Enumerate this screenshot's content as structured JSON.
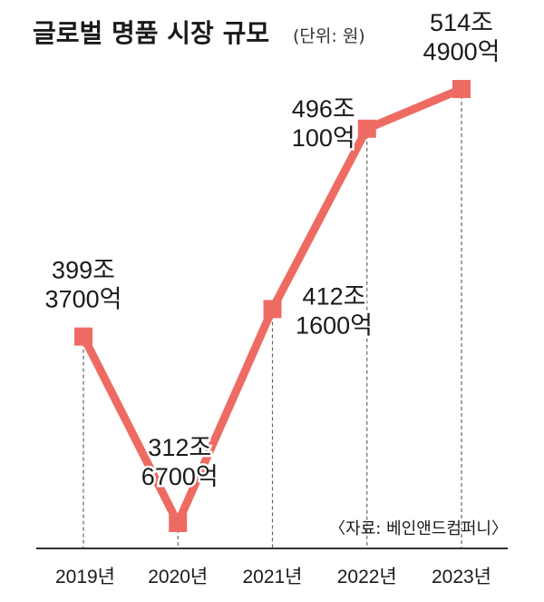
{
  "chart_data": {
    "type": "line",
    "title": "글로벌 명품 시장 규모",
    "unit_note": "(단위: 원)",
    "categories": [
      "2019년",
      "2020년",
      "2021년",
      "2022년",
      "2023년"
    ],
    "series": [
      {
        "values": [
          399.37,
          312.67,
          412.16,
          496.01,
          514.49
        ],
        "value_labels": [
          [
            "399조",
            "3700억"
          ],
          [
            "312조",
            "6700억"
          ],
          [
            "412조",
            "1600억"
          ],
          [
            "496조",
            "100억"
          ],
          [
            "514조",
            "4900억"
          ]
        ]
      }
    ],
    "ylabel": "",
    "xlabel": "",
    "grid": false,
    "source": "〈자료: 베인앤드컴퍼니〉",
    "colors": {
      "line": "#ee6b63",
      "marker": "#ee6b63",
      "guide": "#666666",
      "axis": "#333333"
    }
  }
}
